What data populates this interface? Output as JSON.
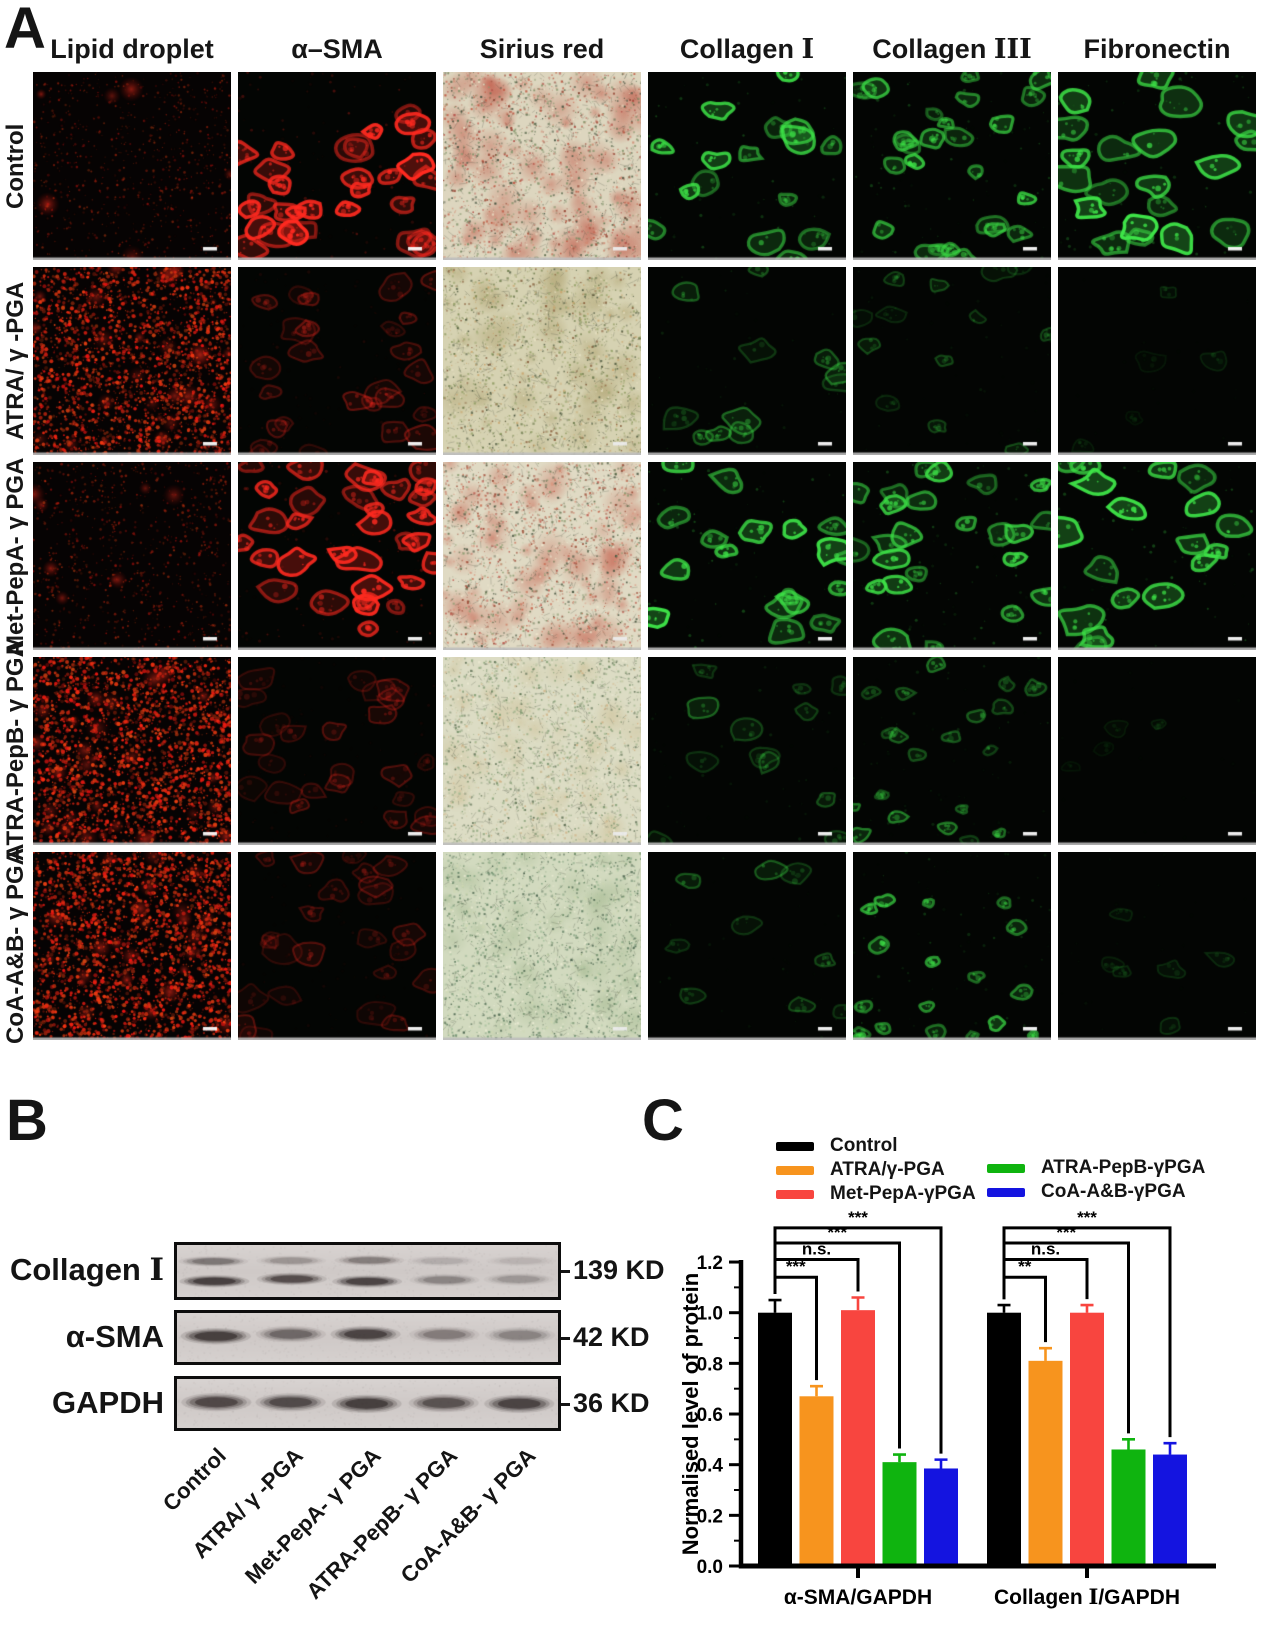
{
  "panel_a": {
    "label": "A",
    "columns": [
      "Lipid droplet",
      "α–SMA",
      "Sirius red",
      "Collagen I",
      "Collagen III",
      "Fibronectin"
    ],
    "rows": [
      "Control",
      "ATRA/ γ -PGA",
      "Met-PepA- γ PGA",
      "ATRA-PepB- γ PGA",
      "CoA-A&B- γ PGA"
    ],
    "tiles": [
      [
        {
          "kind": "red-dots",
          "count": 750,
          "bright": 0.5,
          "blob": 6
        },
        {
          "kind": "red-cells",
          "count": 30,
          "bright": 1.0,
          "size": 1.0
        },
        {
          "kind": "histology",
          "palette": "red"
        },
        {
          "kind": "green-cells",
          "count": 16,
          "bright": 0.9,
          "size": 1.0
        },
        {
          "kind": "green-cells",
          "count": 26,
          "bright": 0.8,
          "size": 0.8
        },
        {
          "kind": "green-cells",
          "count": 20,
          "bright": 1.0,
          "size": 1.2
        }
      ],
      [
        {
          "kind": "red-dots",
          "count": 2300,
          "bright": 0.95,
          "blob": 28
        },
        {
          "kind": "red-cells",
          "count": 26,
          "bright": 0.35,
          "size": 1.0
        },
        {
          "kind": "histology",
          "palette": "olive"
        },
        {
          "kind": "green-cells",
          "count": 11,
          "bright": 0.45,
          "size": 1.0
        },
        {
          "kind": "green-cells",
          "count": 13,
          "bright": 0.3,
          "size": 0.8
        },
        {
          "kind": "green-cells",
          "count": 5,
          "bright": 0.15,
          "size": 0.8
        }
      ],
      [
        {
          "kind": "red-dots",
          "count": 850,
          "bright": 0.55,
          "blob": 8
        },
        {
          "kind": "red-cells",
          "count": 32,
          "bright": 0.95,
          "size": 1.0
        },
        {
          "kind": "histology",
          "palette": "red2"
        },
        {
          "kind": "green-cells",
          "count": 18,
          "bright": 1.0,
          "size": 1.0
        },
        {
          "kind": "green-cells",
          "count": 24,
          "bright": 0.85,
          "size": 0.9
        },
        {
          "kind": "green-cells",
          "count": 18,
          "bright": 1.0,
          "size": 1.25
        }
      ],
      [
        {
          "kind": "red-dots",
          "count": 2400,
          "bright": 1.0,
          "blob": 30
        },
        {
          "kind": "red-cells",
          "count": 24,
          "bright": 0.3,
          "size": 1.0
        },
        {
          "kind": "histology",
          "palette": "pale"
        },
        {
          "kind": "green-cells",
          "count": 12,
          "bright": 0.4,
          "size": 1.0
        },
        {
          "kind": "green-cells",
          "count": 20,
          "bright": 0.5,
          "size": 0.6
        },
        {
          "kind": "green-cells",
          "count": 4,
          "bright": 0.12,
          "size": 0.8
        }
      ],
      [
        {
          "kind": "red-dots",
          "count": 2400,
          "bright": 1.0,
          "blob": 30
        },
        {
          "kind": "red-cells",
          "count": 24,
          "bright": 0.3,
          "size": 1.0
        },
        {
          "kind": "histology",
          "palette": "green"
        },
        {
          "kind": "green-cells",
          "count": 9,
          "bright": 0.35,
          "size": 1.0
        },
        {
          "kind": "green-cells",
          "count": 18,
          "bright": 0.7,
          "size": 0.55
        },
        {
          "kind": "green-cells",
          "count": 6,
          "bright": 0.2,
          "size": 0.8
        }
      ]
    ]
  },
  "panel_b": {
    "label": "B",
    "lanes": [
      "Control",
      "ATRA/ γ -PGA",
      "Met-PepA- γ PGA",
      "ATRA-PepB- γ PGA",
      "CoA-A&B- γ PGA"
    ],
    "blots": [
      {
        "protein": "Collagen I",
        "kd": "139 KD",
        "bands": [
          {
            "y": 0.3,
            "h": 0.16,
            "intensities": [
              0.5,
              0.3,
              0.45,
              0.16,
              0.12
            ]
          },
          {
            "y": 0.68,
            "h": 0.2,
            "intensities": [
              1.0,
              0.85,
              0.95,
              0.4,
              0.28
            ]
          }
        ]
      },
      {
        "protein": "α-SMA",
        "kd": "42 KD",
        "bands": [
          {
            "y": 0.45,
            "h": 0.3,
            "intensities": [
              1.0,
              0.6,
              0.95,
              0.45,
              0.4
            ]
          }
        ]
      },
      {
        "protein": "GAPDH",
        "kd": "36 KD",
        "bands": [
          {
            "y": 0.5,
            "h": 0.34,
            "intensities": [
              0.9,
              0.88,
              1.0,
              0.8,
              0.95
            ]
          }
        ]
      }
    ]
  },
  "panel_c": {
    "label": "C",
    "legend": [
      {
        "label": "Control",
        "color": "#000000"
      },
      {
        "label": "ATRA/γ-PGA",
        "color": "#F7941E"
      },
      {
        "label": "Met-PepA-γPGA",
        "color": "#F8453F"
      },
      {
        "label": "ATRA-PepB-γPGA",
        "color": "#0FB40F"
      },
      {
        "label": "CoA-A&B-γPGA",
        "color": "#1414E0"
      }
    ]
  },
  "chart_data": {
    "type": "bar",
    "title": "",
    "xlabel": "",
    "ylabel": "Normalised level of protein",
    "ylim": [
      0,
      1.2
    ],
    "yticks": [
      "0.0",
      "0.2",
      "0.4",
      "0.6",
      "0.8",
      "1.0",
      "1.2"
    ],
    "grid": false,
    "legend_position": "top",
    "categories": [
      "α-SMA/GAPDH",
      "Collagen I/GAPDH"
    ],
    "series": [
      {
        "name": "Control",
        "color": "#000000",
        "values": [
          1.0,
          1.0
        ],
        "errors": [
          0.05,
          0.03
        ]
      },
      {
        "name": "ATRA/γ-PGA",
        "color": "#F7941E",
        "values": [
          0.67,
          0.81
        ],
        "errors": [
          0.04,
          0.05
        ]
      },
      {
        "name": "Met-PepA-γPGA",
        "color": "#F8453F",
        "values": [
          1.01,
          1.0
        ],
        "errors": [
          0.05,
          0.03
        ]
      },
      {
        "name": "ATRA-PepB-γPGA",
        "color": "#0FB40F",
        "values": [
          0.41,
          0.46
        ],
        "errors": [
          0.03,
          0.04
        ]
      },
      {
        "name": "CoA-A&B-γPGA",
        "color": "#1414E0",
        "values": [
          0.385,
          0.44
        ],
        "errors": [
          0.035,
          0.045
        ]
      }
    ],
    "significance": [
      {
        "category": 0,
        "comparisons": [
          {
            "from": 0,
            "to": 1,
            "label": "***",
            "level": 1.14
          },
          {
            "from": 0,
            "to": 2,
            "label": "n.s.",
            "level": 1.21
          },
          {
            "from": 0,
            "to": 3,
            "label": "***",
            "level": 1.275
          },
          {
            "from": 0,
            "to": 4,
            "label": "***",
            "level": 1.335
          }
        ]
      },
      {
        "category": 1,
        "comparisons": [
          {
            "from": 0,
            "to": 1,
            "label": "**",
            "level": 1.14
          },
          {
            "from": 0,
            "to": 2,
            "label": "n.s.",
            "level": 1.21
          },
          {
            "from": 0,
            "to": 3,
            "label": "***",
            "level": 1.275
          },
          {
            "from": 0,
            "to": 4,
            "label": "***",
            "level": 1.335
          }
        ]
      }
    ]
  }
}
